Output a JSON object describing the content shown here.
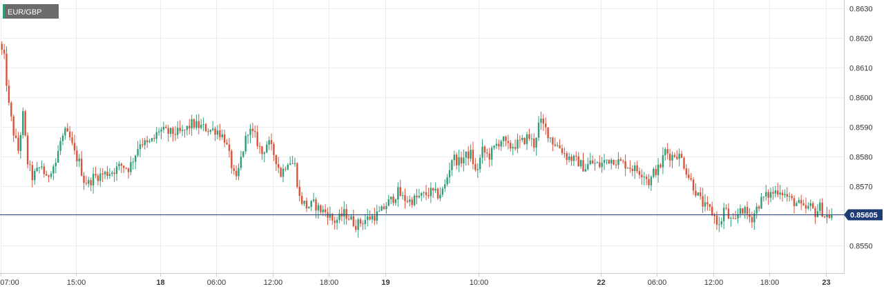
{
  "symbol": "EUR/GBP",
  "current_price_label": "0.85605",
  "colors": {
    "up": "#2e9e78",
    "down": "#d9533b",
    "price_line": "#1f3b73",
    "badge": "#1f3b73"
  },
  "chart_data": {
    "type": "candlestick",
    "title": "",
    "ylim": [
      0.8541,
      0.8632
    ],
    "y_ticks": [
      0.863,
      0.862,
      0.861,
      0.86,
      0.859,
      0.858,
      0.857,
      0.856,
      0.855
    ],
    "y_tick_labels": [
      "0.8630",
      "0.8620",
      "0.8610",
      "0.8600",
      "0.8590",
      "0.8580",
      "0.8570",
      "0.8560",
      "0.8550"
    ],
    "x_ticks": [
      {
        "label": "07:00",
        "hour": 0,
        "bold": false
      },
      {
        "label": "15:00",
        "hour": 8,
        "bold": false
      },
      {
        "label": "18",
        "hour": 17,
        "bold": true
      },
      {
        "label": "06:00",
        "hour": 23,
        "bold": false
      },
      {
        "label": "12:00",
        "hour": 29,
        "bold": false
      },
      {
        "label": "18:00",
        "hour": 35,
        "bold": false
      },
      {
        "label": "19",
        "hour": 41,
        "bold": true
      },
      {
        "label": "10:00",
        "hour": 51,
        "bold": false
      },
      {
        "label": "22",
        "hour": 64,
        "bold": true
      },
      {
        "label": "06:00",
        "hour": 70,
        "bold": false
      },
      {
        "label": "12:00",
        "hour": 76,
        "bold": false
      },
      {
        "label": "18:00",
        "hour": 82,
        "bold": false
      },
      {
        "label": "23",
        "hour": 88,
        "bold": true
      }
    ],
    "x_range_hours": [
      0,
      88.75
    ],
    "current_price": 0.85605,
    "path_points": [
      [
        0.0,
        0.8618
      ],
      [
        0.5,
        0.8613
      ],
      [
        1.0,
        0.8597
      ],
      [
        1.5,
        0.8588
      ],
      [
        2.0,
        0.8582
      ],
      [
        2.5,
        0.8594
      ],
      [
        3.0,
        0.8578
      ],
      [
        3.5,
        0.8573
      ],
      [
        4.0,
        0.8575
      ],
      [
        4.5,
        0.8577
      ],
      [
        5.0,
        0.8572
      ],
      [
        5.5,
        0.8576
      ],
      [
        6.0,
        0.8578
      ],
      [
        6.5,
        0.8585
      ],
      [
        7.0,
        0.8588
      ],
      [
        7.5,
        0.8586
      ],
      [
        8.0,
        0.8581
      ],
      [
        8.5,
        0.8578
      ],
      [
        9.0,
        0.8572
      ],
      [
        9.5,
        0.8571
      ],
      [
        10.0,
        0.8573
      ],
      [
        11.0,
        0.8574
      ],
      [
        12.0,
        0.8575
      ],
      [
        13.0,
        0.8577
      ],
      [
        13.8,
        0.8576
      ],
      [
        14.5,
        0.8581
      ],
      [
        15.0,
        0.8585
      ],
      [
        15.8,
        0.8584
      ],
      [
        16.5,
        0.8586
      ],
      [
        17.0,
        0.8589
      ],
      [
        18.0,
        0.8588
      ],
      [
        19.5,
        0.8588
      ],
      [
        20.5,
        0.8591
      ],
      [
        21.5,
        0.859
      ],
      [
        22.5,
        0.8589
      ],
      [
        23.2,
        0.8589
      ],
      [
        24.0,
        0.8586
      ],
      [
        24.6,
        0.8579
      ],
      [
        25.2,
        0.8571
      ],
      [
        25.8,
        0.858
      ],
      [
        26.5,
        0.8589
      ],
      [
        27.2,
        0.8587
      ],
      [
        28.0,
        0.8581
      ],
      [
        28.6,
        0.8585
      ],
      [
        29.4,
        0.858
      ],
      [
        30.0,
        0.8574
      ],
      [
        30.8,
        0.8579
      ],
      [
        31.5,
        0.8577
      ],
      [
        32.0,
        0.8566
      ],
      [
        32.8,
        0.8563
      ],
      [
        33.5,
        0.8564
      ],
      [
        34.2,
        0.8562
      ],
      [
        35.0,
        0.8561
      ],
      [
        35.6,
        0.8558
      ],
      [
        36.2,
        0.8559
      ],
      [
        36.8,
        0.8561
      ],
      [
        37.4,
        0.8559
      ],
      [
        38.0,
        0.8557
      ],
      [
        38.6,
        0.8558
      ],
      [
        39.2,
        0.8559
      ],
      [
        40.0,
        0.856
      ],
      [
        40.6,
        0.8561
      ],
      [
        41.3,
        0.8564
      ],
      [
        42.0,
        0.8566
      ],
      [
        42.5,
        0.8568
      ],
      [
        43.0,
        0.8566
      ],
      [
        43.8,
        0.8565
      ],
      [
        44.5,
        0.8566
      ],
      [
        45.3,
        0.8567
      ],
      [
        46.0,
        0.8568
      ],
      [
        46.8,
        0.8567
      ],
      [
        47.4,
        0.8569
      ],
      [
        47.9,
        0.8575
      ],
      [
        48.3,
        0.858
      ],
      [
        49.0,
        0.8578
      ],
      [
        49.6,
        0.858
      ],
      [
        50.3,
        0.8581
      ],
      [
        50.8,
        0.8574
      ],
      [
        51.5,
        0.8582
      ],
      [
        52.2,
        0.858
      ],
      [
        53.0,
        0.8584
      ],
      [
        53.6,
        0.8586
      ],
      [
        54.2,
        0.8583
      ],
      [
        55.0,
        0.8584
      ],
      [
        55.8,
        0.8585
      ],
      [
        56.4,
        0.8587
      ],
      [
        57.0,
        0.8584
      ],
      [
        57.6,
        0.8592
      ],
      [
        58.3,
        0.8589
      ],
      [
        59.0,
        0.8585
      ],
      [
        59.8,
        0.8583
      ],
      [
        60.5,
        0.858
      ],
      [
        61.2,
        0.8579
      ],
      [
        61.8,
        0.8578
      ],
      [
        62.4,
        0.8576
      ],
      [
        63.0,
        0.8578
      ],
      [
        64.0,
        0.8577
      ],
      [
        64.8,
        0.8579
      ],
      [
        65.5,
        0.8579
      ],
      [
        66.2,
        0.8578
      ],
      [
        67.0,
        0.8577
      ],
      [
        67.6,
        0.8576
      ],
      [
        68.3,
        0.8575
      ],
      [
        68.8,
        0.8574
      ],
      [
        69.3,
        0.8571
      ],
      [
        69.8,
        0.8575
      ],
      [
        70.4,
        0.8576
      ],
      [
        71.0,
        0.8582
      ],
      [
        71.6,
        0.858
      ],
      [
        72.2,
        0.8581
      ],
      [
        72.8,
        0.8579
      ],
      [
        73.4,
        0.8574
      ],
      [
        74.0,
        0.857
      ],
      [
        74.6,
        0.8566
      ],
      [
        75.2,
        0.8563
      ],
      [
        75.8,
        0.8562
      ],
      [
        76.4,
        0.8559
      ],
      [
        76.8,
        0.8556
      ],
      [
        77.3,
        0.8563
      ],
      [
        77.8,
        0.8559
      ],
      [
        78.4,
        0.8557
      ],
      [
        79.0,
        0.8563
      ],
      [
        79.6,
        0.8561
      ],
      [
        80.2,
        0.8559
      ],
      [
        80.8,
        0.8563
      ],
      [
        81.4,
        0.8566
      ],
      [
        82.0,
        0.8567
      ],
      [
        82.6,
        0.8568
      ],
      [
        83.2,
        0.8569
      ],
      [
        83.8,
        0.8567
      ],
      [
        84.5,
        0.8565
      ],
      [
        85.2,
        0.8564
      ],
      [
        85.8,
        0.8562
      ],
      [
        86.5,
        0.8563
      ],
      [
        87.0,
        0.8561
      ],
      [
        87.5,
        0.8563
      ],
      [
        88.0,
        0.856
      ],
      [
        88.5,
        0.856
      ]
    ]
  }
}
